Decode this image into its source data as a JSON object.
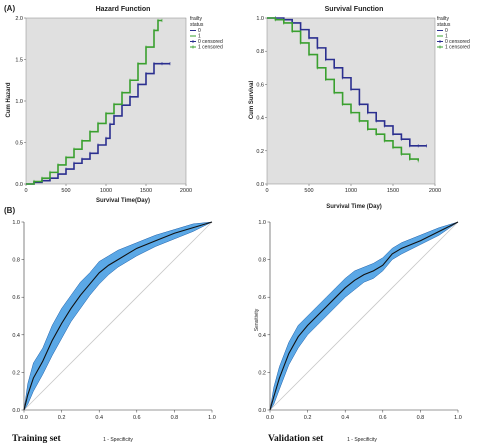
{
  "panels": {
    "a": "(A)",
    "b": "(B)"
  },
  "chart_data": [
    {
      "type": "line",
      "title": "Hazard Function",
      "xlabel": "Survival Time(Day)",
      "ylabel": "Cum Hazard",
      "xlim": [
        0,
        2000
      ],
      "ylim": [
        0,
        2.0
      ],
      "x_ticks": [
        "0",
        "500",
        "1000",
        "1500",
        "2000"
      ],
      "y_ticks": [
        "0.0",
        "0.5",
        "1.0",
        "1.5",
        "2.0"
      ],
      "grid": false,
      "legend_title": [
        "frailty",
        "status"
      ],
      "legend": [
        "0",
        "1",
        "0 censored",
        "1 censored"
      ],
      "legend_position": "top-right",
      "colors": {
        "0": "#2b2f8f",
        "1": "#3aa02f",
        "background": "#e0e0e0"
      },
      "series": [
        {
          "name": "0",
          "x": [
            0,
            100,
            200,
            300,
            400,
            500,
            600,
            700,
            800,
            900,
            1000,
            1050,
            1100,
            1200,
            1300,
            1400,
            1500,
            1600,
            1700,
            1800
          ],
          "y": [
            0,
            0.02,
            0.04,
            0.07,
            0.12,
            0.18,
            0.25,
            0.3,
            0.37,
            0.47,
            0.55,
            0.72,
            0.82,
            0.95,
            1.05,
            1.2,
            1.33,
            1.45,
            1.45,
            1.45
          ]
        },
        {
          "name": "1",
          "x": [
            0,
            100,
            200,
            300,
            400,
            500,
            600,
            700,
            800,
            900,
            1000,
            1100,
            1200,
            1300,
            1400,
            1500,
            1600,
            1650,
            1700
          ],
          "y": [
            0,
            0.03,
            0.07,
            0.14,
            0.23,
            0.32,
            0.42,
            0.52,
            0.63,
            0.73,
            0.85,
            0.96,
            1.1,
            1.25,
            1.45,
            1.65,
            1.85,
            1.97,
            1.97
          ]
        }
      ]
    },
    {
      "type": "line",
      "title": "Survival Function",
      "xlabel": "Survival Time (Day)",
      "ylabel": "Cum Survival",
      "xlim": [
        0,
        2000
      ],
      "ylim": [
        0,
        1.0
      ],
      "x_ticks": [
        "0",
        "500",
        "1000",
        "1500",
        "2000"
      ],
      "y_ticks": [
        "0.0",
        "0.2",
        "0.4",
        "0.6",
        "0.8",
        "1.0"
      ],
      "grid": false,
      "legend_title": [
        "frailty",
        "status"
      ],
      "legend": [
        "0",
        "1",
        "0 censored",
        "1 censored"
      ],
      "legend_position": "top-right",
      "colors": {
        "0": "#2b2f8f",
        "1": "#3aa02f",
        "background": "#e0e0e0"
      },
      "series": [
        {
          "name": "0",
          "x": [
            0,
            100,
            200,
            300,
            400,
            500,
            600,
            700,
            800,
            900,
            1000,
            1100,
            1200,
            1300,
            1400,
            1500,
            1600,
            1700,
            1800,
            1900
          ],
          "y": [
            1.0,
            1.0,
            0.99,
            0.97,
            0.93,
            0.88,
            0.82,
            0.75,
            0.7,
            0.64,
            0.57,
            0.48,
            0.43,
            0.38,
            0.35,
            0.3,
            0.27,
            0.23,
            0.23,
            0.23
          ]
        },
        {
          "name": "1",
          "x": [
            0,
            100,
            200,
            300,
            400,
            500,
            600,
            700,
            800,
            900,
            1000,
            1100,
            1200,
            1300,
            1400,
            1500,
            1600,
            1700,
            1800
          ],
          "y": [
            1.0,
            0.99,
            0.97,
            0.92,
            0.85,
            0.78,
            0.7,
            0.63,
            0.55,
            0.48,
            0.43,
            0.38,
            0.33,
            0.3,
            0.26,
            0.22,
            0.18,
            0.15,
            0.14
          ]
        }
      ]
    },
    {
      "type": "line",
      "xlabel": "1 - Specificity",
      "ylabel": "",
      "set_label": "Training set",
      "xlim": [
        0,
        1
      ],
      "ylim": [
        0,
        1
      ],
      "x_ticks": [
        "0.0",
        "0.2",
        "0.4",
        "0.6",
        "0.8",
        "1.0"
      ],
      "y_ticks": [
        "0.0",
        "0.2",
        "0.4",
        "0.6",
        "0.8",
        "1.0"
      ],
      "colors": {
        "band": "#5ba8e6",
        "line": "#111111",
        "diagonal": "#c8c8c8"
      },
      "x": [
        0,
        0.02,
        0.05,
        0.1,
        0.15,
        0.2,
        0.25,
        0.3,
        0.35,
        0.4,
        0.45,
        0.5,
        0.55,
        0.6,
        0.7,
        0.8,
        0.9,
        1.0
      ],
      "y": [
        0,
        0.08,
        0.17,
        0.26,
        0.37,
        0.46,
        0.54,
        0.61,
        0.67,
        0.73,
        0.77,
        0.8,
        0.83,
        0.86,
        0.9,
        0.94,
        0.97,
        1.0
      ],
      "lower": [
        0,
        0.03,
        0.1,
        0.19,
        0.29,
        0.38,
        0.47,
        0.54,
        0.61,
        0.67,
        0.72,
        0.76,
        0.79,
        0.82,
        0.87,
        0.91,
        0.95,
        1.0
      ],
      "upper": [
        0,
        0.14,
        0.25,
        0.33,
        0.45,
        0.54,
        0.61,
        0.68,
        0.73,
        0.79,
        0.82,
        0.85,
        0.87,
        0.89,
        0.93,
        0.96,
        0.99,
        1.0
      ]
    },
    {
      "type": "line",
      "xlabel": "1 - Specificity",
      "ylabel": "Sensitivity",
      "set_label": "Validation set",
      "xlim": [
        0,
        1
      ],
      "ylim": [
        0,
        1
      ],
      "x_ticks": [
        "0.0",
        "0.2",
        "0.4",
        "0.6",
        "0.8",
        "1.0"
      ],
      "y_ticks": [
        "0.0",
        "0.2",
        "0.4",
        "0.6",
        "0.8",
        "1.0"
      ],
      "colors": {
        "band": "#5ba8e6",
        "line": "#111111",
        "diagonal": "#c8c8c8"
      },
      "x": [
        0,
        0.02,
        0.05,
        0.1,
        0.15,
        0.2,
        0.25,
        0.3,
        0.35,
        0.4,
        0.45,
        0.5,
        0.55,
        0.6,
        0.65,
        0.7,
        0.8,
        0.9,
        1.0
      ],
      "y": [
        0,
        0.07,
        0.17,
        0.3,
        0.39,
        0.45,
        0.5,
        0.55,
        0.6,
        0.65,
        0.69,
        0.72,
        0.74,
        0.77,
        0.83,
        0.86,
        0.9,
        0.95,
        1.0
      ],
      "lower": [
        0,
        0.03,
        0.11,
        0.24,
        0.33,
        0.4,
        0.45,
        0.5,
        0.55,
        0.6,
        0.64,
        0.68,
        0.7,
        0.74,
        0.8,
        0.83,
        0.88,
        0.93,
        1.0
      ],
      "upper": [
        0,
        0.12,
        0.23,
        0.36,
        0.45,
        0.5,
        0.55,
        0.6,
        0.65,
        0.7,
        0.74,
        0.76,
        0.78,
        0.81,
        0.86,
        0.89,
        0.93,
        0.97,
        1.0
      ]
    }
  ]
}
